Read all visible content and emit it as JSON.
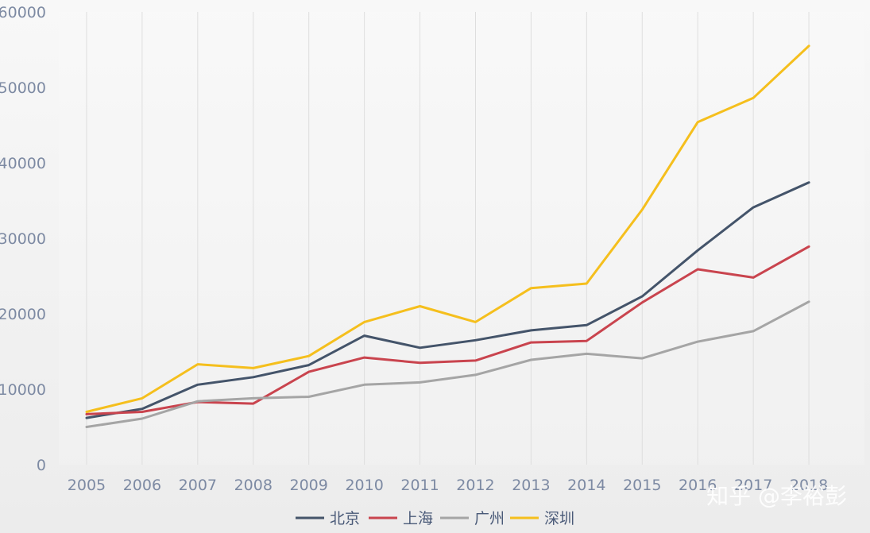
{
  "chart_data": {
    "type": "line",
    "title": "",
    "xlabel": "",
    "ylabel": "",
    "x": [
      "2005",
      "2006",
      "2007",
      "2008",
      "2009",
      "2010",
      "2011",
      "2012",
      "2013",
      "2014",
      "2015",
      "2016",
      "2017",
      "2018"
    ],
    "ylim": [
      0,
      60000
    ],
    "yticks": [
      "0",
      "10000",
      "20000",
      "30000",
      "40000",
      "50000",
      "60000"
    ],
    "grid": "vertical",
    "legend_position": "bottom",
    "series": [
      {
        "name": "北京",
        "color": "#44546a",
        "values": [
          6200,
          7400,
          10600,
          11600,
          13200,
          17100,
          15500,
          16500,
          17800,
          18500,
          22300,
          28400,
          34100,
          37400
        ]
      },
      {
        "name": "上海",
        "color": "#c9444e",
        "values": [
          6700,
          7000,
          8300,
          8100,
          12300,
          14200,
          13500,
          13800,
          16200,
          16400,
          21500,
          25900,
          24800,
          28900
        ]
      },
      {
        "name": "广州",
        "color": "#a5a5a5",
        "values": [
          5000,
          6100,
          8400,
          8800,
          9000,
          10600,
          10900,
          11900,
          13900,
          14700,
          14100,
          16300,
          17700,
          21600
        ]
      },
      {
        "name": "深圳",
        "color": "#f5bf1d",
        "values": [
          7000,
          8800,
          13300,
          12800,
          14400,
          18900,
          21000,
          18900,
          23400,
          24000,
          33800,
          45400,
          48600,
          55500
        ]
      }
    ]
  },
  "watermark": "知乎 @李裕彭"
}
